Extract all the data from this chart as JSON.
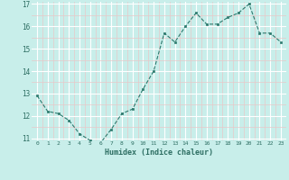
{
  "x": [
    0,
    1,
    2,
    3,
    4,
    5,
    6,
    7,
    8,
    9,
    10,
    11,
    12,
    13,
    14,
    15,
    16,
    17,
    18,
    19,
    20,
    21,
    22,
    23
  ],
  "y": [
    12.9,
    12.2,
    12.1,
    11.8,
    11.2,
    10.9,
    10.8,
    11.4,
    12.1,
    12.3,
    13.2,
    14.0,
    15.7,
    15.3,
    16.0,
    16.6,
    16.1,
    16.1,
    16.4,
    16.6,
    17.0,
    15.7,
    15.7,
    15.3
  ],
  "xlabel": "Humidex (Indice chaleur)",
  "ylim": [
    11,
    17
  ],
  "xlim": [
    -0.5,
    23.5
  ],
  "yticks": [
    11,
    12,
    13,
    14,
    15,
    16,
    17
  ],
  "xticks": [
    0,
    1,
    2,
    3,
    4,
    5,
    6,
    7,
    8,
    9,
    10,
    11,
    12,
    13,
    14,
    15,
    16,
    17,
    18,
    19,
    20,
    21,
    22,
    23
  ],
  "line_color": "#2d7a6e",
  "marker_color": "#2d7a6e",
  "bg_color": "#c8eeea",
  "grid_color": "#ffffff",
  "grid_minor_color": "#e8c8c8",
  "font_color": "#2d6e62"
}
